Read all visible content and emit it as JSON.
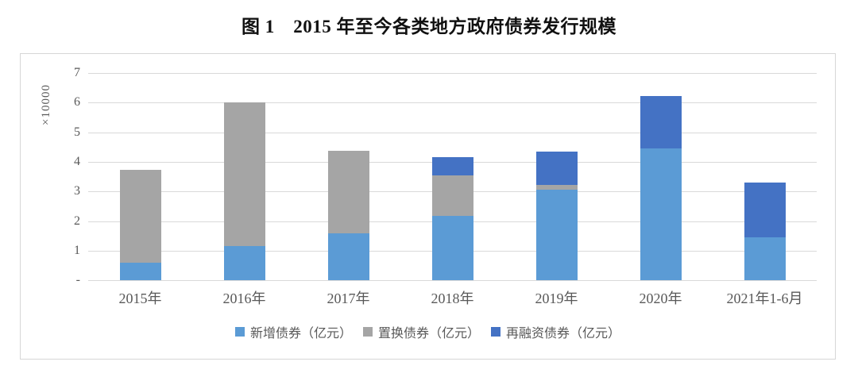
{
  "title": "图 1　2015 年至今各类地方政府债券发行规模",
  "chart_data": {
    "type": "bar",
    "stacked": true,
    "title": "图 1　2015 年至今各类地方政府债券发行规模",
    "categories": [
      "2015年",
      "2016年",
      "2017年",
      "2018年",
      "2019年",
      "2020年",
      "2021年1-6月"
    ],
    "series": [
      {
        "name": "新增债券（亿元）",
        "color": "#5B9BD5",
        "values": [
          6000,
          11500,
          15900,
          21700,
          30500,
          44500,
          14600
        ]
      },
      {
        "name": "置换债券（亿元）",
        "color": "#A5A5A5",
        "values": [
          31400,
          48700,
          27700,
          13800,
          1700,
          0,
          0
        ]
      },
      {
        "name": "再融资债券（亿元）",
        "color": "#4472C4",
        "values": [
          0,
          0,
          0,
          6100,
          11400,
          17700,
          18500
        ]
      }
    ],
    "y_axis": {
      "unit_label": "×10000",
      "ticks": [
        "-",
        "1",
        "2",
        "3",
        "4",
        "5",
        "6",
        "7"
      ],
      "min": 0,
      "max": 70000,
      "tick_step": 10000
    },
    "grid": true,
    "legend_position": "bottom",
    "gridline_color": "#d9d9d9",
    "text_color": "#595959"
  }
}
